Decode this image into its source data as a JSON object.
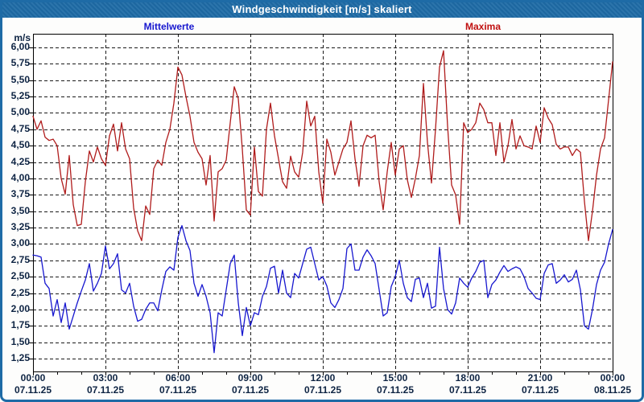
{
  "window": {
    "title": "Windgeschwindigkeit [m/s] skaliert"
  },
  "colors": {
    "titlebar": "#1e6ba6",
    "window_border": "#1e6ba6",
    "axis_text": "#0e2443",
    "grid": "#1a1a1a",
    "mittelwerte_series": "#1717cf",
    "maxima_series": "#b01c1c",
    "plot_background": "#ffffff"
  },
  "chart_data": {
    "type": "line",
    "title": "Windgeschwindigkeit [m/s] skaliert",
    "grid": "dashed",
    "legend_position": "top",
    "y_axis": {
      "unit": "m/s",
      "min": 1.25,
      "max": 6.0,
      "step": 0.25,
      "tick_labels": [
        "6,00",
        "5,75",
        "5,50",
        "5,25",
        "5,00",
        "4,75",
        "4,50",
        "4,25",
        "4,00",
        "3,75",
        "3,50",
        "3,25",
        "3,00",
        "2,75",
        "2,50",
        "2,25",
        "2,00",
        "1,75",
        "1,50",
        "1,25"
      ]
    },
    "x_axis": {
      "span_hours": 24,
      "minor_tick_every_hours": 1,
      "major_tick_every_hours": 3,
      "ticks": [
        {
          "time": "00:00",
          "date": "07.11.25"
        },
        {
          "time": "03:00",
          "date": "07.11.25"
        },
        {
          "time": "06:00",
          "date": "07.11.25"
        },
        {
          "time": "09:00",
          "date": "07.11.25"
        },
        {
          "time": "12:00",
          "date": "07.11.25"
        },
        {
          "time": "15:00",
          "date": "07.11.25"
        },
        {
          "time": "18:00",
          "date": "07.11.25"
        },
        {
          "time": "21:00",
          "date": "07.11.25"
        },
        {
          "time": "00:00",
          "date": "08.11.25"
        }
      ]
    },
    "sample_interval_minutes": 10,
    "series": [
      {
        "name": "Mittelwerte",
        "color": "#1717cf",
        "start_hour": 0,
        "step_hours": 0.1666667,
        "values": [
          2.83,
          2.82,
          2.8,
          2.4,
          2.32,
          1.9,
          2.15,
          1.8,
          2.1,
          1.7,
          1.9,
          2.1,
          2.28,
          2.45,
          2.7,
          2.28,
          2.4,
          2.55,
          2.97,
          2.62,
          2.7,
          2.85,
          2.3,
          2.25,
          2.4,
          2.05,
          1.82,
          1.85,
          2.0,
          2.1,
          2.1,
          1.98,
          2.3,
          2.58,
          2.65,
          2.6,
          3.1,
          3.28,
          3.05,
          2.9,
          2.4,
          2.2,
          2.38,
          2.2,
          1.95,
          1.34,
          1.95,
          1.9,
          2.3,
          2.7,
          2.83,
          2.1,
          1.6,
          2.03,
          1.75,
          1.95,
          1.92,
          2.2,
          2.35,
          2.63,
          2.66,
          2.25,
          2.6,
          2.25,
          2.18,
          2.55,
          2.48,
          2.7,
          2.92,
          2.95,
          2.7,
          2.45,
          2.5,
          2.36,
          2.1,
          2.03,
          2.15,
          2.32,
          2.93,
          3.0,
          2.6,
          2.6,
          2.8,
          2.91,
          2.82,
          2.7,
          2.3,
          1.9,
          1.95,
          2.35,
          2.5,
          2.75,
          2.4,
          2.18,
          2.12,
          2.46,
          2.48,
          2.18,
          2.4,
          2.02,
          2.05,
          2.95,
          2.32,
          2.0,
          1.93,
          2.1,
          2.48,
          2.4,
          2.34,
          2.48,
          2.58,
          2.72,
          2.75,
          2.18,
          2.38,
          2.45,
          2.57,
          2.67,
          2.58,
          2.62,
          2.65,
          2.62,
          2.5,
          2.32,
          2.25,
          2.17,
          2.15,
          2.55,
          2.68,
          2.7,
          2.4,
          2.45,
          2.53,
          2.42,
          2.46,
          2.6,
          2.3,
          1.75,
          1.7,
          2.0,
          2.38,
          2.6,
          2.72,
          3.0,
          3.22
        ]
      },
      {
        "name": "Maxima",
        "color": "#b01c1c",
        "start_hour": 0,
        "step_hours": 0.1666667,
        "values": [
          4.95,
          4.75,
          4.88,
          4.63,
          4.58,
          4.6,
          4.5,
          4.0,
          3.76,
          4.35,
          3.6,
          3.28,
          3.3,
          3.95,
          4.42,
          4.25,
          4.48,
          4.3,
          4.2,
          4.65,
          4.83,
          4.42,
          4.85,
          4.45,
          4.3,
          3.55,
          3.2,
          3.05,
          3.58,
          3.45,
          4.15,
          4.28,
          4.2,
          4.55,
          4.75,
          5.15,
          5.7,
          5.58,
          5.25,
          4.95,
          4.55,
          4.4,
          4.3,
          3.9,
          4.35,
          3.35,
          4.1,
          4.15,
          4.28,
          4.85,
          5.4,
          5.22,
          4.45,
          3.52,
          3.44,
          4.48,
          3.8,
          3.73,
          4.75,
          5.15,
          4.65,
          4.3,
          3.95,
          3.85,
          4.34,
          4.1,
          4.02,
          4.4,
          5.18,
          4.8,
          4.95,
          4.1,
          3.62,
          4.6,
          4.4,
          4.05,
          4.25,
          4.45,
          4.55,
          4.88,
          4.3,
          3.88,
          4.5,
          4.66,
          4.62,
          4.66,
          3.95,
          3.52,
          4.1,
          4.55,
          4.05,
          4.45,
          4.5,
          3.98,
          3.71,
          4.0,
          4.35,
          5.45,
          4.55,
          3.93,
          4.75,
          5.7,
          5.95,
          4.8,
          3.9,
          3.75,
          3.3,
          4.85,
          4.7,
          4.75,
          4.85,
          5.15,
          5.05,
          4.85,
          4.85,
          4.35,
          4.85,
          4.25,
          4.5,
          4.9,
          4.45,
          4.65,
          4.5,
          4.48,
          4.45,
          4.8,
          4.55,
          5.08,
          4.92,
          4.82,
          4.52,
          4.45,
          4.48,
          4.48,
          4.35,
          4.45,
          4.4,
          3.65,
          3.05,
          3.5,
          4.05,
          4.45,
          4.62,
          5.2,
          5.78
        ]
      }
    ]
  }
}
